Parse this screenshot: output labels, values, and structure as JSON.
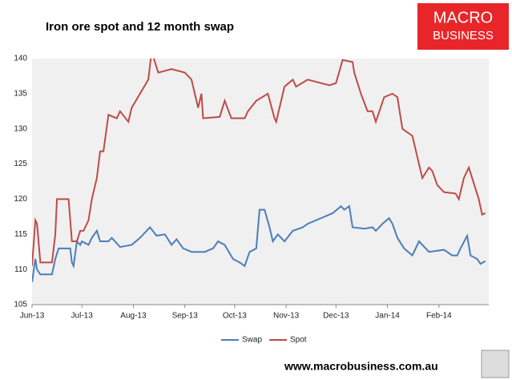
{
  "chart_data": {
    "type": "line",
    "title": "Iron ore spot and 12 month swap",
    "xlim": [
      0,
      275
    ],
    "xticks": [
      {
        "value": 0,
        "label": "Jun-13"
      },
      {
        "value": 30,
        "label": "Jul-13"
      },
      {
        "value": 61,
        "label": "Aug-13"
      },
      {
        "value": 92,
        "label": "Sep-13"
      },
      {
        "value": 122,
        "label": "Oct-13"
      },
      {
        "value": 153,
        "label": "Nov-13"
      },
      {
        "value": 183,
        "label": "Dec-13"
      },
      {
        "value": 214,
        "label": "Jan-14"
      },
      {
        "value": 245,
        "label": "Feb-14"
      }
    ],
    "ylim": [
      105,
      140
    ],
    "yticks": [
      105,
      110,
      115,
      120,
      125,
      130,
      135,
      140
    ],
    "grid": false,
    "legend": "bottom",
    "series": [
      {
        "name": "Swap",
        "color": "#4a7ebb",
        "x": [
          0,
          2,
          3,
          5,
          12,
          14,
          16,
          23,
          24,
          25,
          27,
          29,
          30,
          34,
          36,
          39,
          41,
          46,
          48,
          53,
          60,
          65,
          71,
          75,
          80,
          84,
          87,
          91,
          96,
          104,
          109,
          112,
          116,
          121,
          125,
          128,
          131,
          135,
          137,
          140,
          143,
          145,
          148,
          152,
          157,
          163,
          166,
          171,
          176,
          181,
          186,
          188,
          191,
          193,
          200,
          205,
          207,
          211,
          215,
          217,
          220,
          224,
          229,
          233,
          239,
          248,
          253,
          256,
          258,
          262,
          264,
          268,
          270,
          273
        ],
        "values": [
          108.2,
          111.5,
          110,
          109.3,
          109.3,
          111.5,
          113,
          113,
          111,
          110.5,
          114,
          113.5,
          114,
          113.5,
          114.5,
          115.5,
          114,
          114,
          114.5,
          113.2,
          113.5,
          114.5,
          116,
          114.8,
          115,
          113.5,
          114.3,
          113,
          112.5,
          112.5,
          113,
          114,
          113.5,
          111.5,
          111,
          110.5,
          112.5,
          113,
          118.5,
          118.5,
          116,
          114,
          115,
          114,
          115.5,
          116,
          116.5,
          117,
          117.5,
          118,
          119,
          118.5,
          119,
          116,
          115.8,
          116,
          115.5,
          116.5,
          117.3,
          116.5,
          114.5,
          113,
          112,
          114,
          112.5,
          112.8,
          112,
          112,
          113,
          114.8,
          112,
          111.5,
          110.8,
          111.2
        ]
      },
      {
        "name": "Spot",
        "color": "#be4b48",
        "x": [
          0,
          2,
          3,
          5,
          12,
          14,
          15,
          22,
          24,
          27,
          29,
          31,
          34,
          36,
          39,
          41,
          43,
          46,
          51,
          53,
          58,
          60,
          70,
          72,
          76,
          84,
          92,
          96,
          100,
          102,
          103,
          113,
          116,
          120,
          128,
          130,
          135,
          142,
          146,
          147,
          152,
          157,
          159,
          166,
          174,
          179,
          183,
          187,
          193,
          194,
          198,
          202,
          205,
          207,
          212,
          217,
          220,
          223,
          229,
          232,
          235,
          239,
          241,
          244,
          248,
          255,
          257,
          260,
          263,
          265,
          269,
          271,
          273
        ],
        "values": [
          110.5,
          117,
          116.5,
          111,
          111,
          115,
          120,
          120,
          114,
          114,
          115.5,
          115.5,
          117,
          120,
          123,
          126.8,
          126.8,
          132,
          131.5,
          132.5,
          131,
          133,
          137,
          141,
          138,
          138.5,
          138,
          137,
          133,
          135,
          131.5,
          131.7,
          134,
          131.5,
          131.5,
          132.5,
          134,
          135,
          131.5,
          131,
          136,
          137,
          136,
          137,
          136.5,
          136.2,
          136.5,
          139.8,
          139.5,
          138,
          135,
          132.5,
          132.5,
          131,
          134.5,
          135,
          134.5,
          130,
          129,
          126,
          123,
          124.5,
          124,
          122,
          121,
          120.8,
          120,
          123,
          124.5,
          123,
          120,
          117.8,
          118
        ]
      }
    ]
  },
  "logo": [
    "MACRO",
    "BUSINESS"
  ],
  "footer": "www.macrobusiness.com.au"
}
